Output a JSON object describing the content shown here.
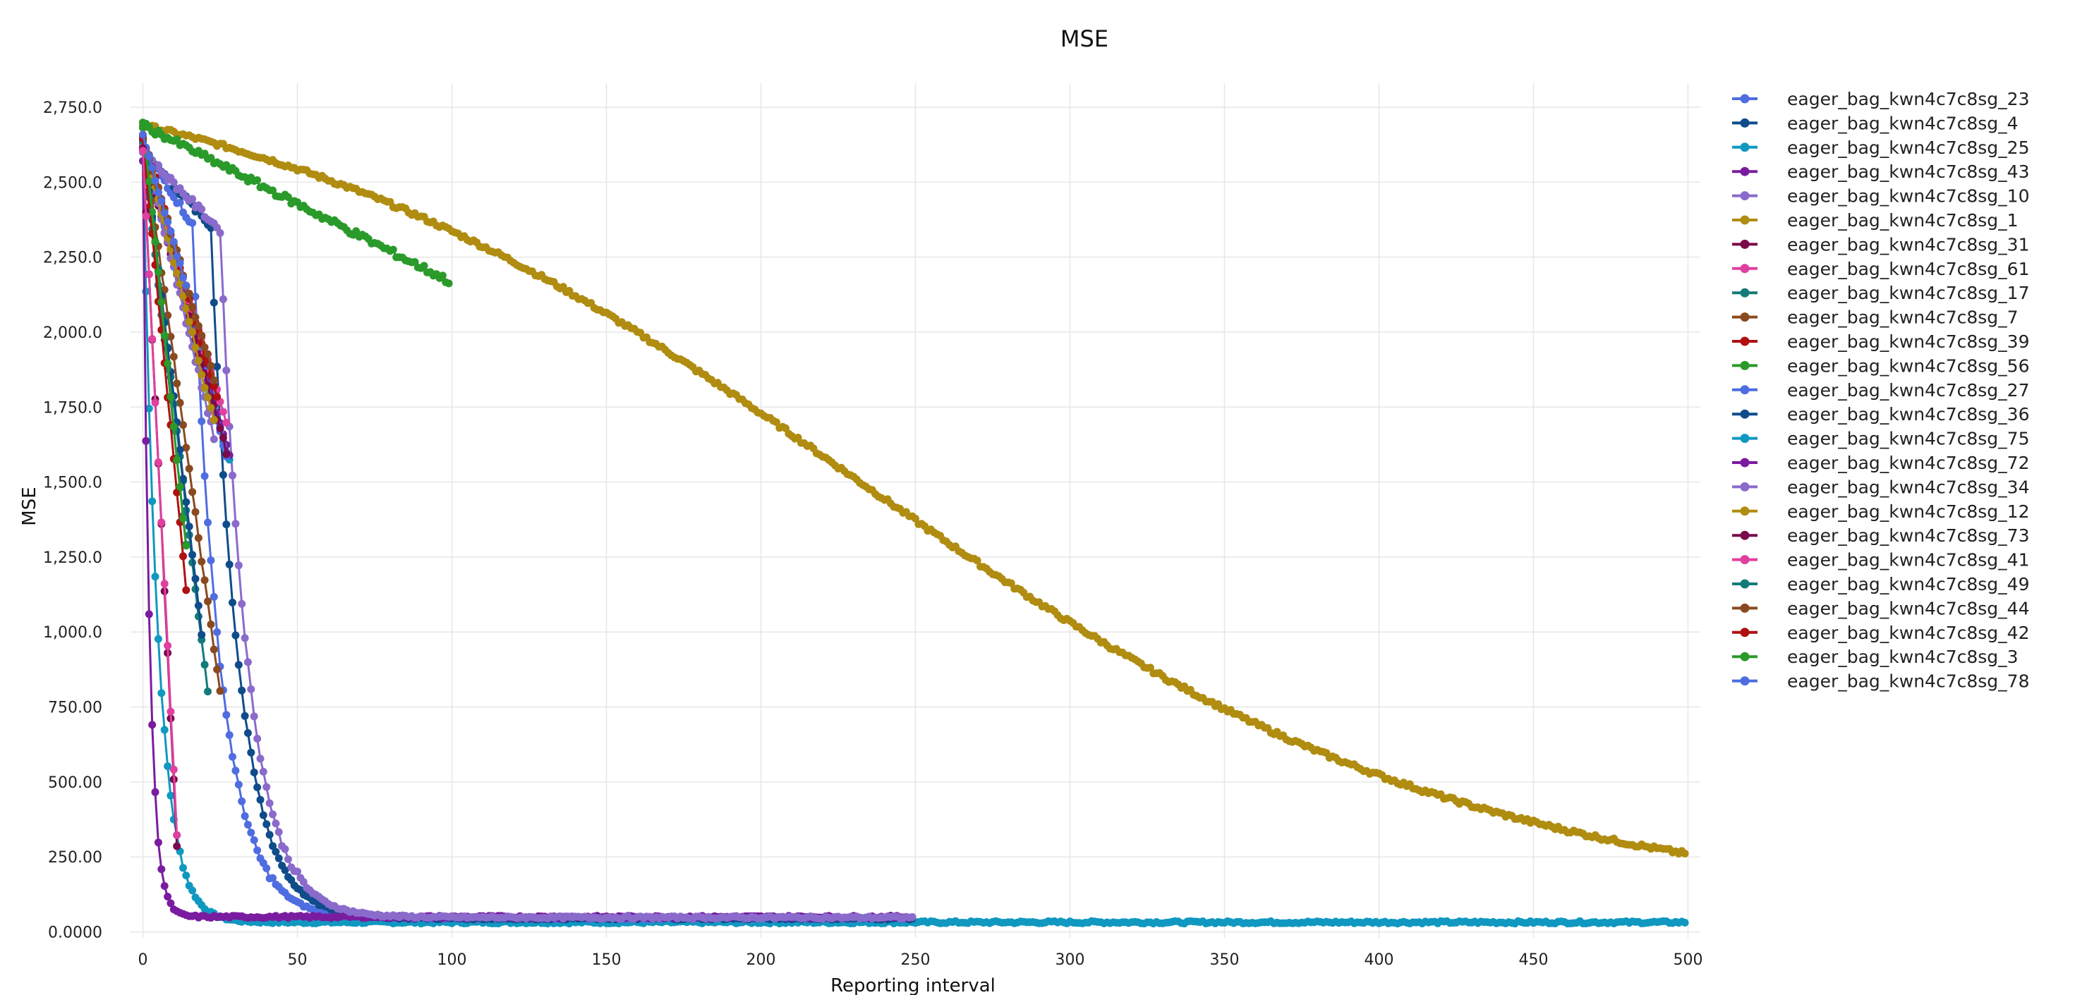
{
  "chart_data": {
    "type": "line",
    "title": "MSE",
    "xlabel": "Reporting interval",
    "ylabel": "MSE",
    "xlim": [
      -4,
      504
    ],
    "ylim": [
      -20,
      2830
    ],
    "x_ticks": [
      0,
      50,
      100,
      150,
      200,
      250,
      300,
      350,
      400,
      450,
      500
    ],
    "x_tick_labels": [
      "0",
      "50",
      "100",
      "150",
      "200",
      "250",
      "300",
      "350",
      "400",
      "450",
      "500"
    ],
    "y_ticks": [
      0,
      250,
      500,
      750,
      1000,
      1250,
      1500,
      1750,
      2000,
      2250,
      2500,
      2750
    ],
    "y_tick_labels": [
      "0.0000",
      "250.00",
      "500.00",
      "750.00",
      "1,000.0",
      "1,250.0",
      "1,500.0",
      "1,750.0",
      "2,000.0",
      "2,250.0",
      "2,500.0",
      "2,750.0"
    ],
    "grid": true,
    "legend_position": "right",
    "series": [
      {
        "name": "eager_bag_kwn4c7c8sg_23",
        "color": "#4f6de0",
        "kind": "exp",
        "len": 250,
        "start": 2620,
        "floor": 45,
        "tau": 9,
        "delay": 16
      },
      {
        "name": "eager_bag_kwn4c7c8sg_4",
        "color": "#0f4c8a",
        "kind": "exp",
        "len": 250,
        "start": 2610,
        "floor": 45,
        "tau": 9,
        "delay": 22
      },
      {
        "name": "eager_bag_kwn4c7c8sg_25",
        "color": "#1098c0",
        "kind": "exp",
        "len": 500,
        "start": 2600,
        "floor": 32,
        "tau": 5,
        "delay": 0
      },
      {
        "name": "eager_bag_kwn4c7c8sg_43",
        "color": "#7a1ca0",
        "kind": "exp",
        "len": 250,
        "start": 2560,
        "floor": 50,
        "tau": 2.2,
        "delay": 0
      },
      {
        "name": "eager_bag_kwn4c7c8sg_10",
        "color": "#8a6bcc",
        "kind": "exp",
        "len": 250,
        "start": 2600,
        "floor": 48,
        "tau": 9,
        "delay": 25
      },
      {
        "name": "eager_bag_kwn4c7c8sg_1",
        "color": "#b08c10",
        "kind": "sigmoid",
        "len": 500,
        "start": 2690,
        "floor": 130,
        "mid": 230,
        "scale": 100
      },
      {
        "name": "eager_bag_kwn4c7c8sg_31",
        "color": "#7a0a4a",
        "kind": "lin",
        "len": 12,
        "start": 2620,
        "end": 290
      },
      {
        "name": "eager_bag_kwn4c7c8sg_61",
        "color": "#e040a0",
        "kind": "lin",
        "len": 12,
        "start": 2600,
        "end": 330
      },
      {
        "name": "eager_bag_kwn4c7c8sg_17",
        "color": "#137a7a",
        "kind": "lin",
        "len": 22,
        "start": 2640,
        "end": 800
      },
      {
        "name": "eager_bag_kwn4c7c8sg_7",
        "color": "#8a4a20",
        "kind": "lin",
        "len": 26,
        "start": 2650,
        "end": 800
      },
      {
        "name": "eager_bag_kwn4c7c8sg_39",
        "color": "#b01010",
        "kind": "lin",
        "len": 25,
        "start": 2660,
        "end": 1780
      },
      {
        "name": "eager_bag_kwn4c7c8sg_56",
        "color": "#2a9a2a",
        "kind": "lin",
        "len": 100,
        "start": 2690,
        "end": 2170
      },
      {
        "name": "eager_bag_kwn4c7c8sg_27",
        "color": "#4f6de0",
        "kind": "lin",
        "len": 28,
        "start": 2630,
        "end": 1590
      },
      {
        "name": "eager_bag_kwn4c7c8sg_36",
        "color": "#0f4c8a",
        "kind": "lin",
        "len": 20,
        "start": 2640,
        "end": 1000
      },
      {
        "name": "eager_bag_kwn4c7c8sg_75",
        "color": "#1098c0",
        "kind": "lin",
        "len": 29,
        "start": 2620,
        "end": 1570
      },
      {
        "name": "eager_bag_kwn4c7c8sg_72",
        "color": "#7a1ca0",
        "kind": "lin",
        "len": 29,
        "start": 2630,
        "end": 1590
      },
      {
        "name": "eager_bag_kwn4c7c8sg_34",
        "color": "#8a6bcc",
        "kind": "lin",
        "len": 24,
        "start": 2640,
        "end": 1650
      },
      {
        "name": "eager_bag_kwn4c7c8sg_12",
        "color": "#b08c10",
        "kind": "lin",
        "len": 24,
        "start": 2650,
        "end": 1700
      },
      {
        "name": "eager_bag_kwn4c7c8sg_73",
        "color": "#7a0a4a",
        "kind": "lin",
        "len": 28,
        "start": 2600,
        "end": 1600
      },
      {
        "name": "eager_bag_kwn4c7c8sg_41",
        "color": "#e040a0",
        "kind": "lin",
        "len": 28,
        "start": 2620,
        "end": 1700
      },
      {
        "name": "eager_bag_kwn4c7c8sg_49",
        "color": "#137a7a",
        "kind": "lin",
        "len": 15,
        "start": 2640,
        "end": 1300
      },
      {
        "name": "eager_bag_kwn4c7c8sg_44",
        "color": "#8a4a20",
        "kind": "lin",
        "len": 24,
        "start": 2650,
        "end": 1850
      },
      {
        "name": "eager_bag_kwn4c7c8sg_42",
        "color": "#b01010",
        "kind": "lin",
        "len": 15,
        "start": 2640,
        "end": 1150
      },
      {
        "name": "eager_bag_kwn4c7c8sg_3",
        "color": "#2a9a2a",
        "kind": "lin",
        "len": 15,
        "start": 2700,
        "end": 1280
      },
      {
        "name": "eager_bag_kwn4c7c8sg_78",
        "color": "#4f6de0",
        "kind": "lin",
        "len": 15,
        "start": 2650,
        "end": 2150
      }
    ]
  }
}
